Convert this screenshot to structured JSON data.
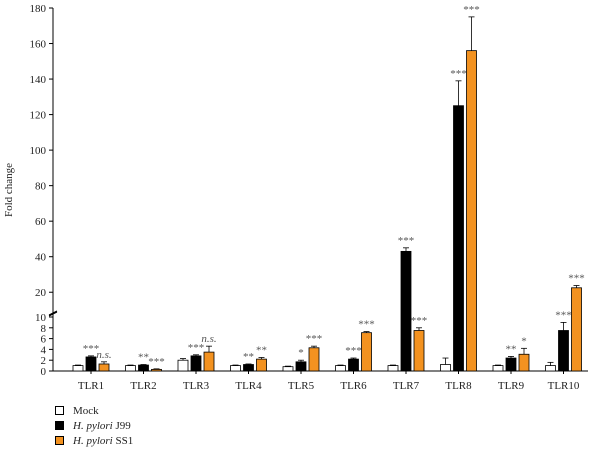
{
  "chart_data": {
    "type": "bar",
    "ylabel": "Fold change",
    "xlabel": "",
    "y_axis_break": true,
    "ylim_lower": [
      0,
      10
    ],
    "ylim_upper": [
      10,
      180
    ],
    "yticks_lower": [
      0,
      2,
      4,
      6,
      8,
      10
    ],
    "yticks_upper": [
      20,
      40,
      60,
      80,
      100,
      120,
      140,
      160,
      180
    ],
    "categories": [
      "TLR1",
      "TLR2",
      "TLR3",
      "TLR4",
      "TLR5",
      "TLR6",
      "TLR7",
      "TLR8",
      "TLR9",
      "TLR10"
    ],
    "legend_position": "bottom-left",
    "series": [
      {
        "name": "Mock",
        "name_italic": "",
        "name_suffix": "",
        "color": "#ffffff",
        "values": [
          1,
          1,
          2,
          1,
          0.8,
          1,
          1,
          1.2,
          1,
          1
        ],
        "errors": [
          0.1,
          0.1,
          0.3,
          0.1,
          0.1,
          0.1,
          0.1,
          1.2,
          0.1,
          0.6
        ],
        "significance": [
          "",
          "",
          "",
          "",
          "",
          "",
          "",
          "",
          "",
          ""
        ]
      },
      {
        "name": "H. pylori J99",
        "name_italic": "H. pylori",
        "name_suffix": " J99",
        "color": "#000000",
        "values": [
          2.6,
          1.1,
          2.8,
          1.2,
          1.7,
          2.2,
          43,
          125,
          2.4,
          7.5
        ],
        "errors": [
          0.2,
          0.1,
          0.2,
          0.1,
          0.3,
          0.2,
          2,
          14,
          0.3,
          1.5
        ],
        "significance": [
          "***",
          "**",
          "***",
          "**",
          "*",
          "***",
          "***",
          "***",
          "**",
          "***"
        ]
      },
      {
        "name": "H. pylori SS1",
        "name_italic": "H. pylori",
        "name_suffix": " SS1",
        "color": "#f39220",
        "values": [
          1.3,
          0.3,
          3.5,
          2.2,
          4.3,
          7.1,
          7.5,
          156,
          3.1,
          22.5
        ],
        "errors": [
          0.4,
          0.1,
          1.1,
          0.3,
          0.3,
          0.2,
          0.5,
          19,
          1.1,
          1.3
        ],
        "significance": [
          "n.s.",
          "***",
          "n.s.",
          "**",
          "***",
          "***",
          "***",
          "***",
          "*",
          "***"
        ]
      }
    ]
  }
}
